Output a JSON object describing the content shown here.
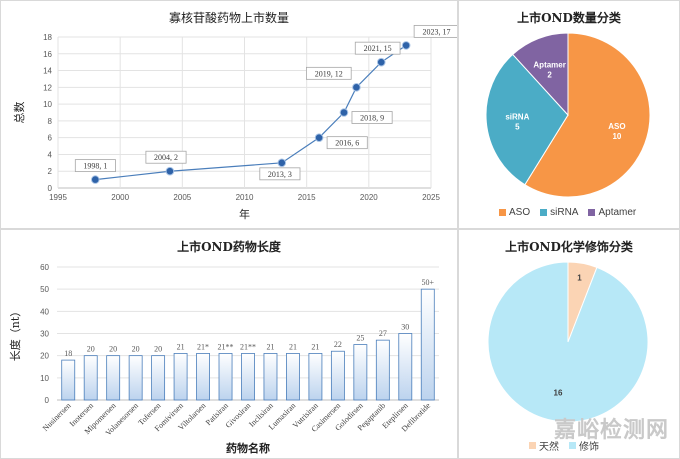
{
  "chart_data": [
    {
      "type": "line",
      "title": "寡核苷酸药物上市数量",
      "xlabel": "年",
      "ylabel": "总数",
      "xlim": [
        1995,
        2025
      ],
      "ylim": [
        0,
        18
      ],
      "xticks": [
        1995,
        2000,
        2005,
        2010,
        2015,
        2020,
        2025
      ],
      "yticks": [
        0,
        2,
        4,
        6,
        8,
        10,
        12,
        14,
        16,
        18
      ],
      "grid": true,
      "x": [
        1998,
        2004,
        2013,
        2016,
        2018,
        2019,
        2021,
        2023
      ],
      "y": [
        1,
        2,
        3,
        6,
        9,
        12,
        15,
        17
      ],
      "labels": [
        "1998, 1",
        "2004, 2",
        "2013, 3",
        "2016, 6",
        "2018, 9",
        "2019, 12",
        "2021, 15",
        "2023, 17"
      ]
    },
    {
      "type": "pie",
      "title": "上市OND数量分类",
      "categories": [
        "ASO",
        "siRNA",
        "Aptamer"
      ],
      "values": [
        10,
        5,
        2
      ],
      "colors": [
        "#f79646",
        "#4bacc6",
        "#8064a2"
      ],
      "legend": "bottom"
    },
    {
      "type": "bar",
      "title": "上市OND药物长度",
      "xlabel": "药物名称",
      "ylabel": "长度（nt）",
      "ylim": [
        0,
        60
      ],
      "yticks": [
        0,
        10,
        20,
        30,
        40,
        50,
        60
      ],
      "grid": true,
      "categories": [
        "Nusinersen",
        "Inotersen",
        "Mipomersen",
        "Volanesorsen",
        "Tofersen",
        "Fomivirsen",
        "Viltolarsen",
        "Patisiran",
        "Givosiran",
        "Inclisiran",
        "Lumasiran",
        "Vutrisiran",
        "Casimersen",
        "Golodirsen",
        "Pegaptanib",
        "Eteplirsen",
        "Defibrotide"
      ],
      "values": [
        18,
        20,
        20,
        20,
        20,
        21,
        21,
        21,
        21,
        21,
        21,
        21,
        22,
        25,
        27,
        30,
        50
      ],
      "value_labels": [
        "18",
        "20",
        "20",
        "20",
        "20",
        "21",
        "21*",
        "21**",
        "21**",
        "21",
        "21",
        "21",
        "22",
        "25",
        "27",
        "30",
        "50+"
      ]
    },
    {
      "type": "pie",
      "title": "上市OND化学修饰分类",
      "categories": [
        "天然",
        "修饰"
      ],
      "values": [
        1,
        16
      ],
      "colors": [
        "#fbd4b4",
        "#b7e8f7"
      ],
      "legend": "bottom"
    }
  ],
  "watermark": "嘉峪检测网"
}
